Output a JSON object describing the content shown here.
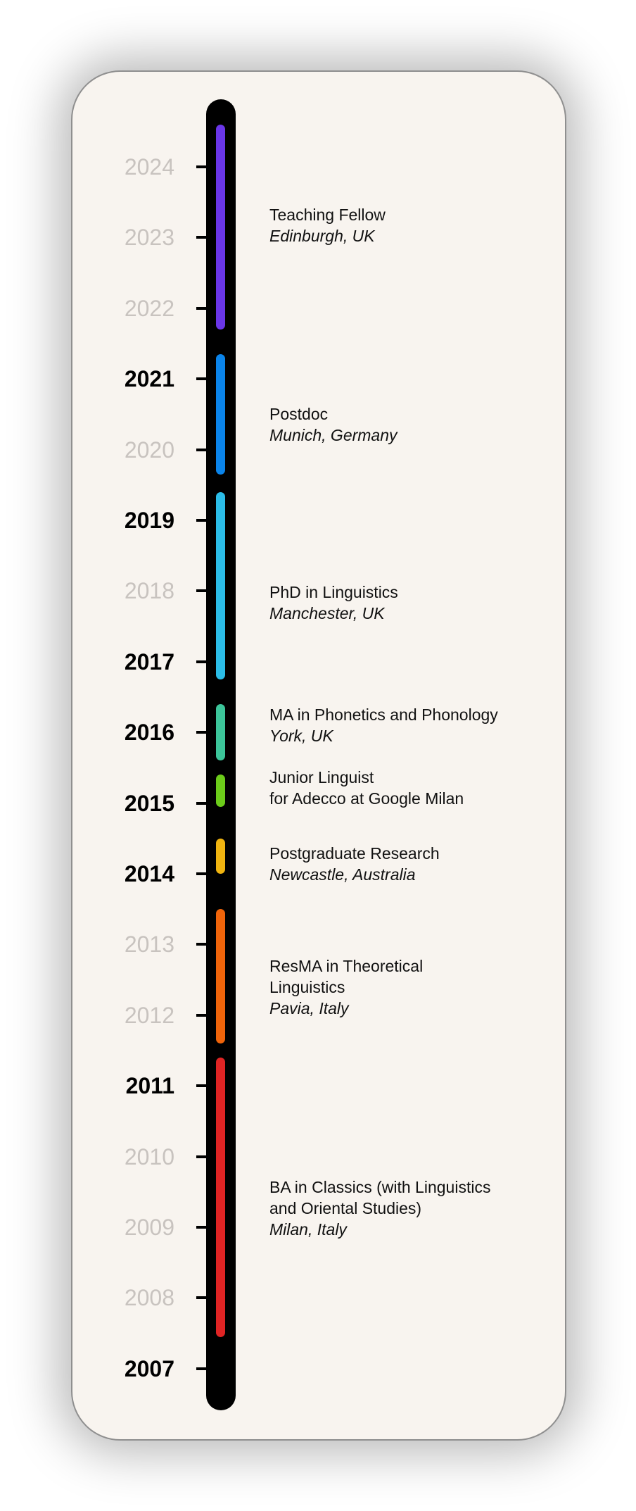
{
  "years": [
    {
      "label": "2024",
      "active": false
    },
    {
      "label": "2023",
      "active": false
    },
    {
      "label": "2022",
      "active": false
    },
    {
      "label": "2021",
      "active": true
    },
    {
      "label": "2020",
      "active": false
    },
    {
      "label": "2019",
      "active": true
    },
    {
      "label": "2018",
      "active": false
    },
    {
      "label": "2017",
      "active": true
    },
    {
      "label": "2016",
      "active": true
    },
    {
      "label": "2015",
      "active": true
    },
    {
      "label": "2014",
      "active": true
    },
    {
      "label": "2013",
      "active": false
    },
    {
      "label": "2012",
      "active": false
    },
    {
      "label": "2011",
      "active": true
    },
    {
      "label": "2010",
      "active": false
    },
    {
      "label": "2009",
      "active": false
    },
    {
      "label": "2008",
      "active": false
    },
    {
      "label": "2007",
      "active": true
    }
  ],
  "events": [
    {
      "lines": [
        "Teaching Fellow"
      ],
      "place": "Edinburgh, UK",
      "color": "#6a36e8",
      "start": 2021.7,
      "end": 2024.6
    },
    {
      "lines": [
        "Postdoc"
      ],
      "place": "Munich, Germany",
      "color": "#0a84ea",
      "start": 2019.65,
      "end": 2021.35
    },
    {
      "lines": [
        "PhD in Linguistics"
      ],
      "place": "Manchester, UK",
      "color": "#2bbde8",
      "start": 2016.75,
      "end": 2019.4
    },
    {
      "lines": [
        "MA in Phonetics and Phonology"
      ],
      "place": "York, UK",
      "color": "#3cc59a",
      "start": 2015.6,
      "end": 2016.4
    },
    {
      "lines": [
        "Junior Linguist",
        "for Adecco at Google Milan"
      ],
      "place": "",
      "color": "#6ccc1a",
      "start": 2014.95,
      "end": 2015.4
    },
    {
      "lines": [
        "Postgraduate Research"
      ],
      "place": "Newcastle, Australia",
      "color": "#f0b410",
      "start": 2014.0,
      "end": 2014.5
    },
    {
      "lines": [
        "ResMA in Theoretical",
        "Linguistics"
      ],
      "place": "Pavia, Italy",
      "color": "#f0640a",
      "start": 2011.6,
      "end": 2013.5
    },
    {
      "lines": [
        "BA in Classics (with Linguistics",
        "and Oriental Studies)"
      ],
      "place": "Milan, Italy",
      "color": "#e02424",
      "start": 2007.45,
      "end": 2011.4
    }
  ]
}
